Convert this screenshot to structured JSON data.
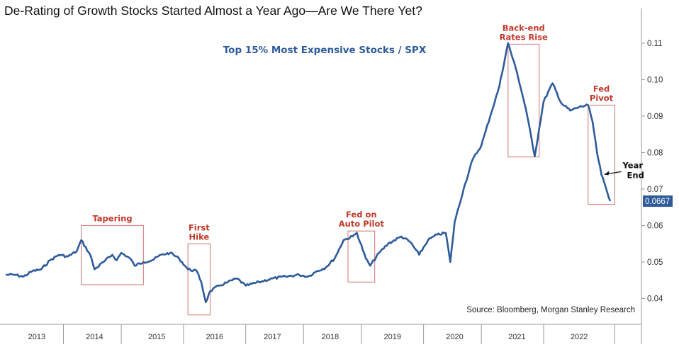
{
  "chart_data": {
    "type": "line",
    "title": "De-Rating of Growth Stocks Started Almost a Year Ago—Are We There Yet?",
    "series": [
      {
        "name": "Top 15% Most Expensive Stocks / SPX",
        "color": "#2e5b9a",
        "points": [
          [
            "2012-10",
            0.0465
          ],
          [
            "2012-12",
            0.0465
          ],
          [
            "2013-02",
            0.046
          ],
          [
            "2013-04",
            0.0475
          ],
          [
            "2013-06",
            0.048
          ],
          [
            "2013-08",
            0.0505
          ],
          [
            "2013-10",
            0.052
          ],
          [
            "2013-12",
            0.0515
          ],
          [
            "2014-02",
            0.053
          ],
          [
            "2014-03",
            0.056
          ],
          [
            "2014-05",
            0.052
          ],
          [
            "2014-06",
            0.048
          ],
          [
            "2014-08",
            0.05
          ],
          [
            "2014-10",
            0.052
          ],
          [
            "2014-11",
            0.0505
          ],
          [
            "2014-12",
            0.0525
          ],
          [
            "2015-02",
            0.051
          ],
          [
            "2015-03",
            0.049
          ],
          [
            "2015-05",
            0.05
          ],
          [
            "2015-07",
            0.0505
          ],
          [
            "2015-09",
            0.052
          ],
          [
            "2015-11",
            0.0525
          ],
          [
            "2016-01",
            0.051
          ],
          [
            "2016-03",
            0.048
          ],
          [
            "2016-05",
            0.0475
          ],
          [
            "2016-06",
            0.0445
          ],
          [
            "2016-07",
            0.039
          ],
          [
            "2016-08",
            0.042
          ],
          [
            "2016-10",
            0.0435
          ],
          [
            "2016-12",
            0.0445
          ],
          [
            "2017-02",
            0.0455
          ],
          [
            "2017-04",
            0.0435
          ],
          [
            "2017-07",
            0.0445
          ],
          [
            "2017-10",
            0.0455
          ],
          [
            "2018-01",
            0.046
          ],
          [
            "2018-04",
            0.0465
          ],
          [
            "2018-06",
            0.046
          ],
          [
            "2018-08",
            0.0475
          ],
          [
            "2018-10",
            0.0485
          ],
          [
            "2018-12",
            0.051
          ],
          [
            "2019-02",
            0.056
          ],
          [
            "2019-04",
            0.057
          ],
          [
            "2019-05",
            0.058
          ],
          [
            "2019-07",
            0.051
          ],
          [
            "2019-08",
            0.049
          ],
          [
            "2019-10",
            0.0525
          ],
          [
            "2019-12",
            0.055
          ],
          [
            "2020-03",
            0.057
          ],
          [
            "2020-05",
            0.0555
          ],
          [
            "2020-07",
            0.052
          ],
          [
            "2020-09",
            0.056
          ],
          [
            "2020-11",
            0.0575
          ],
          [
            "2021-01",
            0.058
          ],
          [
            "2021-02",
            0.05
          ],
          [
            "2021-03",
            0.061
          ],
          [
            "2021-05",
            0.07
          ],
          [
            "2021-07",
            0.078
          ],
          [
            "2021-09",
            0.082
          ],
          [
            "2021-11",
            0.09
          ],
          [
            "2022-01",
            0.098
          ],
          [
            "2022-03",
            0.11
          ],
          [
            "2022-05",
            0.102
          ],
          [
            "2022-07",
            0.092
          ],
          [
            "2022-09",
            0.079
          ],
          [
            "2022-11",
            0.094
          ],
          [
            "2023-01",
            0.099
          ],
          [
            "2023-03",
            0.0935
          ],
          [
            "2023-05",
            0.0915
          ],
          [
            "2023-07",
            0.0925
          ],
          [
            "2023-09",
            0.093
          ],
          [
            "2023-10",
            0.0885
          ],
          [
            "2023-11",
            0.08
          ],
          [
            "2023-12",
            0.074
          ],
          [
            "2024-02",
            0.0667
          ]
        ]
      }
    ],
    "y_ticks": [
      0.04,
      0.05,
      0.06,
      0.07,
      0.08,
      0.09,
      0.1,
      0.11
    ],
    "y_tick_labels": [
      "0.04",
      "0.05",
      "0.06",
      "0.07",
      "0.08",
      "0.09",
      "0.10",
      "0.11"
    ],
    "ylim": [
      0.0335,
      0.1195
    ],
    "x_labels": [
      {
        "label": "2013",
        "at": "2013-05"
      },
      {
        "label": "2014",
        "at": "2014-06"
      },
      {
        "label": "2015",
        "at": "2015-08"
      },
      {
        "label": "2016",
        "at": "2016-09"
      },
      {
        "label": "2017",
        "at": "2017-10"
      },
      {
        "label": "2018",
        "at": "2018-11"
      },
      {
        "label": "2019",
        "at": "2020-01"
      },
      {
        "label": "2020",
        "at": "2021-03"
      },
      {
        "label": "2021",
        "at": "2022-05"
      },
      {
        "label": "2022",
        "at": "2023-07"
      }
    ],
    "x_dividers": [
      "2013-11",
      "2014-12",
      "2016-02",
      "2017-04",
      "2018-05",
      "2019-06",
      "2020-08",
      "2021-09",
      "2022-11",
      "2024-03"
    ],
    "xlim": [
      "2012-10",
      "2024-09"
    ],
    "last_value_label": "0.0667",
    "annotations": [
      {
        "lines": [
          "Tapering"
        ],
        "color": "#c0392b",
        "box_x": [
          "2014-03",
          "2015-05"
        ],
        "box_y": [
          0.0438,
          0.06
        ]
      },
      {
        "lines": [
          "First",
          "Hike"
        ],
        "color": "#c0392b",
        "box_x": [
          "2016-03",
          "2016-08"
        ],
        "box_y": [
          0.0355,
          0.055
        ]
      },
      {
        "lines": [
          "Fed on",
          "Auto Pilot"
        ],
        "color": "#c0392b",
        "box_x": [
          "2019-03",
          "2019-09"
        ],
        "box_y": [
          0.0445,
          0.0585
        ]
      },
      {
        "lines": [
          "Back-end",
          "Rates Rise"
        ],
        "color": "#c0392b",
        "box_x": [
          "2022-03",
          "2022-10"
        ],
        "box_y": [
          0.0788,
          0.1097
        ]
      },
      {
        "lines": [
          "Fed",
          "Pivot"
        ],
        "color": "#c0392b",
        "box_x": [
          "2023-09",
          "2024-03"
        ],
        "box_y": [
          0.0658,
          0.093
        ]
      },
      {
        "lines": [
          "Year",
          "End"
        ],
        "color": "#111111",
        "arrow_to": [
          "2023-12",
          0.074
        ]
      }
    ],
    "source": "Source: Bloomberg, Morgan Stanley Research"
  }
}
